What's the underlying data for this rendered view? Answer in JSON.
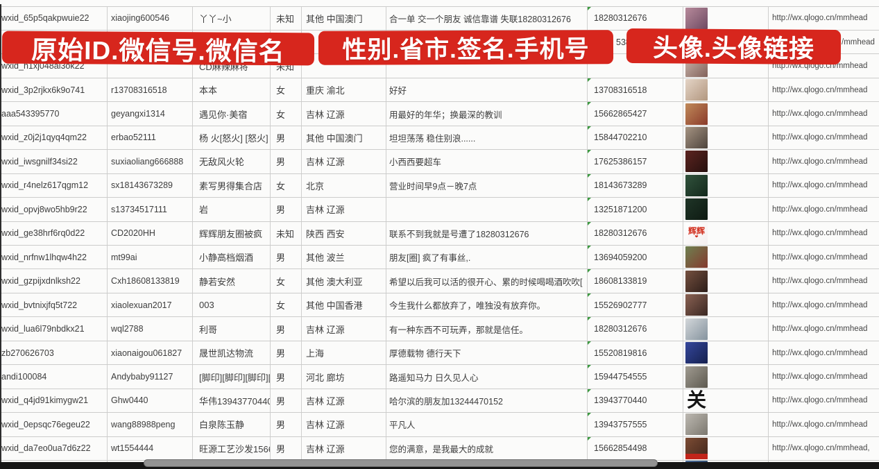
{
  "banners": [
    {
      "label": "原始ID.微信号.微信名"
    },
    {
      "label": "性别.省市.签名.手机号"
    },
    {
      "label": "头像.头像链接"
    }
  ],
  "colors": {
    "banner_red": "#d7261d",
    "banner_text": "#ffffff",
    "grid_line": "#cccccb",
    "error_triangle_green": "#3c9a40",
    "scrollbar_track": "#161616",
    "scrollbar_thumb": "#939393"
  },
  "scrollbar": {
    "orientation": "horizontal"
  },
  "rows": [
    {
      "wxid": "wxid_65p5qakpwuie22",
      "wechat_id": "xiaojing600546",
      "name": "丫丫~小",
      "gender": "未知",
      "region": "其他 中国澳门",
      "signature": "合一单 交一个朋友 诚信靠谱 失联18280312676",
      "phone": "18280312676",
      "link": "http://wx.qlogo.cn/mmhead",
      "avatar": {
        "desc": "woman-selfie-photo",
        "c1": "#b78a9b",
        "c2": "#6e4a62"
      }
    },
    {
      "wxid": "",
      "wechat_id": "",
      "name": "",
      "gender": "",
      "region": "",
      "signature": "",
      "phone": "5386",
      "phone_fragment": true,
      "link": "/mmhead",
      "link_fragment": true,
      "avatar": null,
      "note_hidden_behind_banner": true
    },
    {
      "wxid": "wxid_h1xj048al3ok22",
      "wechat_id": "",
      "name": "CD麻辣麻将",
      "gender": "未知",
      "region": "",
      "signature": "",
      "phone": "",
      "triangle": true,
      "link": "http://wx.qlogo.cn/mmhead",
      "avatar": {
        "desc": "woman-dark-hair-photo",
        "c1": "#cbb8ae",
        "c2": "#82615a"
      }
    },
    {
      "wxid": "wxid_3p2rjkx6k9o741",
      "wechat_id": "r13708316518",
      "name": "本本",
      "gender": "女",
      "region": "重庆 渝北",
      "signature": "好好",
      "phone": "13708316518",
      "link": "http://wx.qlogo.cn/mmhead",
      "avatar": {
        "desc": "pale-portrait-photo",
        "c1": "#e4d4c6",
        "c2": "#b2977f"
      }
    },
    {
      "wxid": "aaa543395770",
      "wechat_id": "geyangxi1314",
      "name": "遇见你·美宿",
      "gender": "女",
      "region": "吉林 辽源",
      "signature": "用最好的年华；换最深的教训",
      "phone": "15662865427",
      "link": "http://wx.qlogo.cn/mmhead",
      "avatar": {
        "desc": "red-figurines-photo",
        "c1": "#c08a5a",
        "c2": "#8a3a2a"
      }
    },
    {
      "wxid": "wxid_z0j2j1qyq4qm22",
      "wechat_id": "erbao52111",
      "name": "杨 火[怒火] [怒火]",
      "gender": "男",
      "region": "其他 中国澳门",
      "signature": "坦坦荡荡 稳住别浪......",
      "phone": "15844702210",
      "link": "http://wx.qlogo.cn/mmhead",
      "avatar": {
        "desc": "child-in-car-photo",
        "c1": "#a59382",
        "c2": "#4e443c"
      }
    },
    {
      "wxid": "wxid_iwsgnilf34si22",
      "wechat_id": "suxiaoliang666888",
      "name": "无敌风火轮",
      "gender": "男",
      "region": "吉林 辽源",
      "signature": "小西西要超车",
      "phone": "17625386157",
      "link": "http://wx.qlogo.cn/mmhead",
      "avatar": {
        "desc": "dark-red-night-scene",
        "c1": "#5c2420",
        "c2": "#26100e"
      }
    },
    {
      "wxid": "wxid_r4nelz617qgm12",
      "wechat_id": "sx18143673289",
      "name": "素写男得集合店",
      "gender": "女",
      "region": "北京",
      "signature": "营业时间早9点－晚7点",
      "phone": "18143673289",
      "link": "http://wx.qlogo.cn/mmhead",
      "avatar": {
        "desc": "green-storefront-photo",
        "c1": "#31523c",
        "c2": "#13291c"
      }
    },
    {
      "wxid": "wxid_opvj8wo5hb9r22",
      "wechat_id": "s13734517111",
      "name": "岩",
      "gender": "男",
      "region": "吉林 辽源",
      "signature": "",
      "phone": "13251871200",
      "link": "http://wx.qlogo.cn/mmhead",
      "avatar": {
        "desc": "dark-green-road-photo",
        "c1": "#1f3527",
        "c2": "#0e1a12"
      }
    },
    {
      "wxid": "wxid_ge38hrf6rq0d22",
      "wechat_id": "CD2020HH",
      "name": "辉辉朋友圈被疯",
      "gender": "未知",
      "region": "陕西 西安",
      "signature": "联系不到我就是号遭了18280312676",
      "phone": "18280312676",
      "link": "http://wx.qlogo.cn/mmhead",
      "avatar": {
        "desc": "white-card-red-text",
        "c1": "#ffffff",
        "c2": "#f4efef",
        "label": "辉辉",
        "label_color": "#d2301f",
        "sub": "❤"
      }
    },
    {
      "wxid": "wxid_nrfnw1lhqw4h22",
      "wechat_id": "mt99ai",
      "name": "小静高档烟酒",
      "gender": "男",
      "region": "其他 波兰",
      "signature": "朋友[圈] 疯了有事丝,.",
      "phone": "13694059200",
      "link": "http://wx.qlogo.cn/mmhead",
      "avatar": {
        "desc": "woman-sunglasses-photo",
        "c1": "#6e8050",
        "c2": "#84392e"
      }
    },
    {
      "wxid": "wxid_gzpijxdnlksh22",
      "wechat_id": "Cxh18608133819",
      "name": "静若安然",
      "gender": "女",
      "region": "其他 澳大利亚",
      "signature": "希望以后我可以活的很开心、累的时候喝喝酒吹吹[",
      "phone": "18608133819",
      "link": "http://wx.qlogo.cn/mmhead",
      "avatar": {
        "desc": "woman-portrait-photo",
        "c1": "#75503f",
        "c2": "#2c1d19"
      }
    },
    {
      "wxid": "wxid_bvtnixjfq5t722",
      "wechat_id": "xiaolexuan2017",
      "name": "003",
      "gender": "女",
      "region": "其他 中国香港",
      "signature": "今生我什么都放弃了，唯独没有放弃你。",
      "phone": "15526902777",
      "link": "http://wx.qlogo.cn/mmhead",
      "avatar": {
        "desc": "woman-selfie-photo",
        "c1": "#8a6253",
        "c2": "#3a2722"
      }
    },
    {
      "wxid": "wxid_lua6l79nbdkx21",
      "wechat_id": "wql2788",
      "name": "利哥",
      "gender": "男",
      "region": "吉林 辽源",
      "signature": "有一种东西不可玩弄，那就是信任。",
      "phone": "18280312676",
      "link": "http://wx.qlogo.cn/mmhead",
      "avatar": {
        "desc": "man-white-cap-photo",
        "c1": "#d3d7da",
        "c2": "#85939e"
      }
    },
    {
      "wxid": "zb270626703",
      "wechat_id": "xiaonaigou061827",
      "name": "晟世凯达物流",
      "gender": "男",
      "region": "上海",
      "signature": "厚德载物 德行天下",
      "phone": "15520819816",
      "link": "http://wx.qlogo.cn/mmhead",
      "avatar": {
        "desc": "blue-qr-code-image",
        "c1": "#35479c",
        "c2": "#15204e"
      }
    },
    {
      "wxid": "andi100084",
      "wechat_id": "Andybaby91127",
      "name": "[脚印][脚印][脚印][脚印",
      "gender": "男",
      "region": "河北 廊坊",
      "signature": "路遥知马力 日久见人心",
      "phone": "15944754555",
      "link": "http://wx.qlogo.cn/mmhead",
      "avatar": {
        "desc": "gray-temple-scene-photo",
        "c1": "#a09b91",
        "c2": "#5d594f"
      }
    },
    {
      "wxid": "wxid_q4jd91kimygw21",
      "wechat_id": "Ghw0440",
      "name": "华伟13943770440",
      "gender": "男",
      "region": "吉林 辽源",
      "signature": "哈尔滨的朋友加13244470152",
      "phone": "13943770440",
      "link": "http://wx.qlogo.cn/mmhead",
      "avatar": {
        "desc": "black-calligraphy-on-white",
        "c1": "#ffffff",
        "c2": "#f6f6f4",
        "label": "关",
        "label_color": "#151515",
        "big": true
      }
    },
    {
      "wxid": "wxid_0epsqc76egeu22",
      "wechat_id": "wang88988peng",
      "name": "白泉陈玉静",
      "gender": "男",
      "region": "吉林 辽源",
      "signature": "平凡人",
      "phone": "13943757555",
      "link": "http://wx.qlogo.cn/mmhead",
      "avatar": {
        "desc": "gray-standing-person-photo",
        "c1": "#bcb8b1",
        "c2": "#7c786f"
      }
    },
    {
      "wxid": "wxid_da7eo0ua7d6z22",
      "wechat_id": "wt1554444",
      "name": "旺源工艺沙发15662854",
      "gender": "男",
      "region": "吉林 辽源",
      "signature": "您的满意，是我最大的成就",
      "phone": "15662854498",
      "link": "http://wx.qlogo.cn/mmhead,",
      "avatar": {
        "desc": "brown-sofa-photo-red-band",
        "c1": "#7c4c34",
        "c2": "#40251b",
        "band": "#c2251a"
      }
    },
    {
      "wxid": "",
      "wechat_id": "",
      "name": "",
      "gender": "",
      "region": "",
      "signature": "",
      "phone": "",
      "link": "",
      "partial": true,
      "avatar": {
        "desc": "partially-visible-blue-avatar",
        "c1": "#4a6a9a",
        "c2": "#2d4668"
      }
    }
  ]
}
